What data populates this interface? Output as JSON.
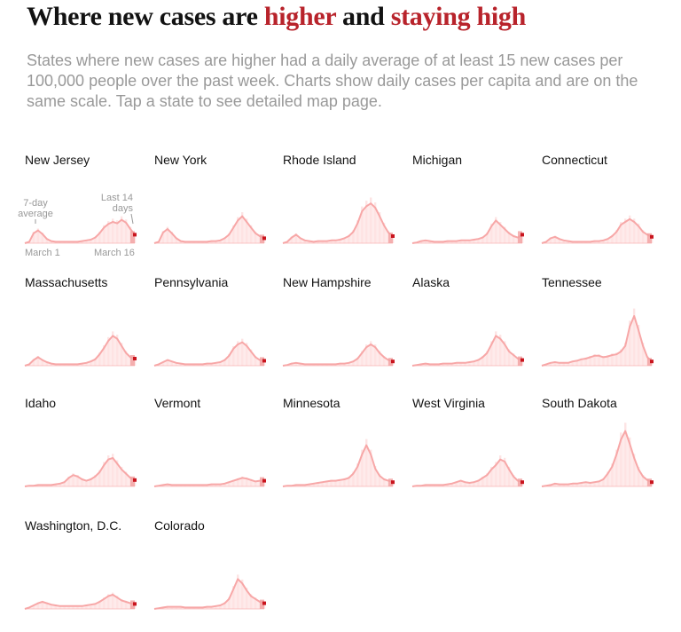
{
  "headline": {
    "part1": "Where new cases are ",
    "highlight1": "higher",
    "part2": " and ",
    "highlight2": "staying high"
  },
  "subhead": "States where new cases are higher had a daily average of at least 15 new cases per 100,000 people over the past week. Charts show daily cases per capita and are on the same scale. Tap a state to see detailed map page.",
  "annotations": {
    "avg_line1": "7-day",
    "avg_line2": "average",
    "last_line1": "Last 14",
    "last_line2": "days",
    "x_start": "March 1",
    "x_end": "March 16"
  },
  "colors": {
    "line": "#f7a7a7",
    "fill": "#fde2e2",
    "bars": "#fbd2d2",
    "recent": "#c9151e",
    "recent_band": "#f1a0a0",
    "headline_highlight": "#b8232b",
    "subhead": "#999999"
  },
  "chart_data": {
    "type": "area",
    "description_of_units": "7-day average daily cases per capita, relative scale shared by all charts (values 0-100 of shared max)",
    "ylim": [
      0,
      100
    ],
    "x_labels": [
      "March 1",
      "March 16"
    ],
    "states": [
      {
        "name": "New Jersey",
        "values": [
          0,
          2,
          14,
          18,
          13,
          6,
          3,
          2,
          2,
          2,
          2,
          2,
          2,
          3,
          4,
          5,
          8,
          14,
          22,
          27,
          30,
          28,
          33,
          29,
          20,
          12
        ]
      },
      {
        "name": "New York",
        "values": [
          0,
          2,
          15,
          20,
          14,
          7,
          3,
          2,
          2,
          2,
          2,
          2,
          2,
          3,
          3,
          4,
          7,
          12,
          22,
          32,
          38,
          30,
          22,
          14,
          10,
          7
        ]
      },
      {
        "name": "Rhode Island",
        "values": [
          0,
          2,
          8,
          12,
          7,
          4,
          3,
          2,
          3,
          3,
          3,
          4,
          4,
          5,
          7,
          10,
          16,
          28,
          45,
          52,
          56,
          50,
          38,
          25,
          15,
          10
        ]
      },
      {
        "name": "Michigan",
        "values": [
          0,
          1,
          3,
          4,
          3,
          2,
          2,
          2,
          3,
          3,
          3,
          4,
          4,
          4,
          5,
          6,
          8,
          13,
          24,
          32,
          26,
          20,
          14,
          10,
          8,
          12
        ]
      },
      {
        "name": "Connecticut",
        "values": [
          0,
          2,
          7,
          9,
          6,
          4,
          3,
          2,
          2,
          2,
          2,
          2,
          3,
          3,
          4,
          6,
          10,
          16,
          26,
          30,
          34,
          30,
          24,
          16,
          12,
          9
        ]
      },
      {
        "name": "Massachusetts",
        "values": [
          0,
          2,
          8,
          12,
          8,
          5,
          3,
          2,
          2,
          2,
          2,
          2,
          2,
          3,
          4,
          6,
          9,
          16,
          25,
          35,
          42,
          38,
          28,
          18,
          12,
          10
        ]
      },
      {
        "name": "Pennsylvania",
        "values": [
          0,
          2,
          5,
          8,
          6,
          4,
          3,
          2,
          2,
          2,
          2,
          2,
          3,
          3,
          4,
          5,
          8,
          14,
          24,
          30,
          33,
          28,
          20,
          12,
          8,
          7
        ]
      },
      {
        "name": "New Hampshire",
        "values": [
          0,
          1,
          3,
          4,
          3,
          2,
          2,
          2,
          2,
          2,
          2,
          2,
          2,
          3,
          3,
          4,
          6,
          10,
          18,
          26,
          30,
          26,
          18,
          12,
          8,
          6
        ]
      },
      {
        "name": "Alaska",
        "values": [
          0,
          1,
          2,
          3,
          2,
          2,
          2,
          3,
          3,
          3,
          4,
          4,
          4,
          5,
          6,
          8,
          12,
          18,
          30,
          42,
          38,
          30,
          20,
          15,
          10,
          8
        ]
      },
      {
        "name": "Tennessee",
        "values": [
          0,
          2,
          4,
          5,
          4,
          4,
          4,
          6,
          7,
          9,
          10,
          12,
          14,
          14,
          12,
          13,
          15,
          16,
          20,
          28,
          55,
          70,
          50,
          28,
          12,
          6
        ]
      },
      {
        "name": "Idaho",
        "values": [
          0,
          1,
          1,
          2,
          2,
          2,
          2,
          3,
          4,
          6,
          12,
          16,
          14,
          10,
          8,
          10,
          14,
          20,
          30,
          38,
          40,
          32,
          24,
          18,
          12,
          9
        ]
      },
      {
        "name": "Vermont",
        "values": [
          0,
          1,
          2,
          3,
          2,
          2,
          2,
          2,
          2,
          2,
          2,
          2,
          2,
          3,
          3,
          3,
          4,
          6,
          8,
          10,
          12,
          11,
          9,
          7,
          8,
          8
        ]
      },
      {
        "name": "Minnesota",
        "values": [
          0,
          1,
          1,
          2,
          2,
          2,
          3,
          4,
          5,
          6,
          7,
          8,
          8,
          9,
          10,
          12,
          18,
          28,
          45,
          58,
          45,
          25,
          15,
          10,
          8,
          6
        ]
      },
      {
        "name": "West Virginia",
        "values": [
          0,
          1,
          1,
          2,
          2,
          2,
          2,
          2,
          3,
          4,
          6,
          8,
          6,
          5,
          6,
          8,
          12,
          16,
          24,
          30,
          38,
          35,
          24,
          14,
          8,
          6
        ]
      },
      {
        "name": "South Dakota",
        "values": [
          0,
          1,
          2,
          4,
          3,
          3,
          3,
          4,
          4,
          5,
          6,
          5,
          6,
          7,
          10,
          18,
          28,
          45,
          66,
          78,
          60,
          40,
          24,
          14,
          9,
          6
        ]
      },
      {
        "name": "Washington, D.C.",
        "values": [
          0,
          2,
          5,
          8,
          10,
          8,
          6,
          5,
          4,
          4,
          4,
          4,
          4,
          4,
          5,
          6,
          7,
          10,
          14,
          18,
          20,
          16,
          12,
          10,
          8,
          7
        ]
      },
      {
        "name": "Colorado",
        "values": [
          0,
          1,
          2,
          3,
          3,
          3,
          3,
          2,
          2,
          2,
          2,
          2,
          3,
          3,
          4,
          5,
          8,
          14,
          28,
          42,
          36,
          26,
          18,
          14,
          10,
          8
        ]
      }
    ]
  }
}
